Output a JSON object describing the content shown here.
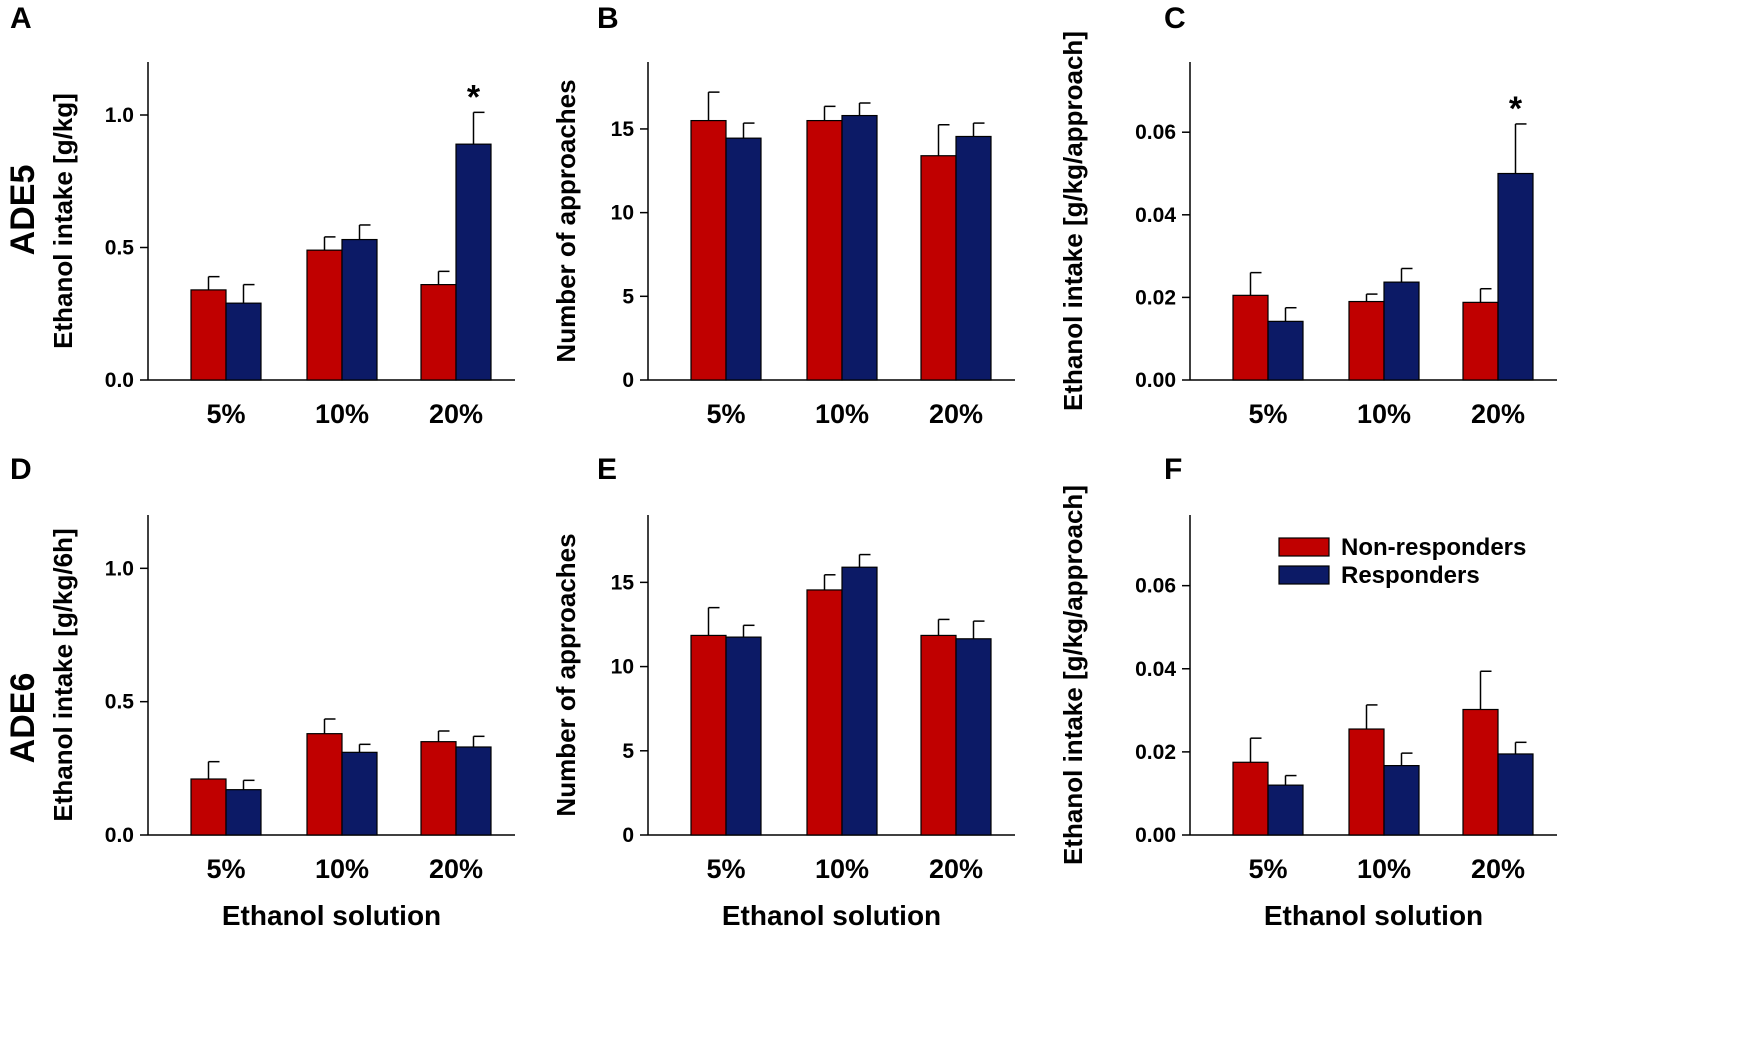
{
  "figure": {
    "series_names": [
      "Non-responders",
      "Responders"
    ],
    "colors": {
      "Non-responders": "#c00000",
      "Responders": "#0c1a66"
    },
    "row_labels": [
      "ADE5",
      "ADE6"
    ],
    "xlabel": "Ethanol solution"
  },
  "chart_data": [
    {
      "panel": "A",
      "type": "bar",
      "row": "ADE5",
      "ylabel": "Ethanol intake [g/kg]",
      "xlabel": "",
      "categories": [
        "5%",
        "10%",
        "20%"
      ],
      "ylim": [
        0,
        1.2
      ],
      "yticks": [
        0.0,
        0.5,
        1.0
      ],
      "ytick_labels": [
        "0.0",
        "0.5",
        "1.0"
      ],
      "series": [
        {
          "name": "Non-responders",
          "values": [
            0.34,
            0.49,
            0.36
          ],
          "errors": [
            0.05,
            0.05,
            0.05
          ]
        },
        {
          "name": "Responders",
          "values": [
            0.29,
            0.53,
            0.89
          ],
          "errors": [
            0.07,
            0.055,
            0.12
          ]
        }
      ],
      "annotations": [
        {
          "text": "*",
          "category": "20%",
          "series": "Responders"
        }
      ]
    },
    {
      "panel": "B",
      "type": "bar",
      "row": "ADE5",
      "ylabel": "Number of approaches",
      "xlabel": "",
      "categories": [
        "5%",
        "10%",
        "20%"
      ],
      "ylim": [
        0,
        19
      ],
      "yticks": [
        0,
        5,
        10,
        15
      ],
      "ytick_labels": [
        "0",
        "5",
        "10",
        "15"
      ],
      "series": [
        {
          "name": "Non-responders",
          "values": [
            15.5,
            15.5,
            13.4
          ],
          "errors": [
            1.7,
            0.85,
            1.85
          ]
        },
        {
          "name": "Responders",
          "values": [
            14.45,
            15.8,
            14.55
          ],
          "errors": [
            0.9,
            0.75,
            0.8
          ]
        }
      ],
      "annotations": []
    },
    {
      "panel": "C",
      "type": "bar",
      "row": "ADE5",
      "ylabel": "Ethanol intake [g/kg/approach]",
      "xlabel": "",
      "categories": [
        "5%",
        "10%",
        "20%"
      ],
      "ylim": [
        0,
        0.077
      ],
      "yticks": [
        0.0,
        0.02,
        0.04,
        0.06
      ],
      "ytick_labels": [
        "0.00",
        "0.02",
        "0.04",
        "0.06"
      ],
      "series": [
        {
          "name": "Non-responders",
          "values": [
            0.0205,
            0.019,
            0.0188
          ],
          "errors": [
            0.0055,
            0.0018,
            0.0033
          ]
        },
        {
          "name": "Responders",
          "values": [
            0.0142,
            0.0237,
            0.05
          ],
          "errors": [
            0.0033,
            0.0033,
            0.012
          ]
        }
      ],
      "annotations": [
        {
          "text": "*",
          "category": "20%",
          "series": "Responders"
        }
      ]
    },
    {
      "panel": "D",
      "type": "bar",
      "row": "ADE6",
      "ylabel": "Ethanol intake [g/kg/6h]",
      "xlabel": "Ethanol solution",
      "categories": [
        "5%",
        "10%",
        "20%"
      ],
      "ylim": [
        0,
        1.2
      ],
      "yticks": [
        0.0,
        0.5,
        1.0
      ],
      "ytick_labels": [
        "0.0",
        "0.5",
        "1.0"
      ],
      "series": [
        {
          "name": "Non-responders",
          "values": [
            0.21,
            0.38,
            0.35
          ],
          "errors": [
            0.065,
            0.055,
            0.04
          ]
        },
        {
          "name": "Responders",
          "values": [
            0.17,
            0.31,
            0.33
          ],
          "errors": [
            0.035,
            0.03,
            0.04
          ]
        }
      ],
      "annotations": []
    },
    {
      "panel": "E",
      "type": "bar",
      "row": "ADE6",
      "ylabel": "Number of approaches",
      "xlabel": "Ethanol solution",
      "categories": [
        "5%",
        "10%",
        "20%"
      ],
      "ylim": [
        0,
        19
      ],
      "yticks": [
        0,
        5,
        10,
        15
      ],
      "ytick_labels": [
        "0",
        "5",
        "10",
        "15"
      ],
      "series": [
        {
          "name": "Non-responders",
          "values": [
            11.85,
            14.55,
            11.85
          ],
          "errors": [
            1.65,
            0.9,
            0.95
          ]
        },
        {
          "name": "Responders",
          "values": [
            11.75,
            15.9,
            11.65
          ],
          "errors": [
            0.7,
            0.75,
            1.05
          ]
        }
      ],
      "annotations": []
    },
    {
      "panel": "F",
      "type": "bar",
      "row": "ADE6",
      "ylabel": "Ethanol intake [g/kg/approach]",
      "xlabel": "Ethanol solution",
      "categories": [
        "5%",
        "10%",
        "20%"
      ],
      "ylim": [
        0,
        0.077
      ],
      "yticks": [
        0.0,
        0.02,
        0.04,
        0.06
      ],
      "ytick_labels": [
        "0.00",
        "0.02",
        "0.04",
        "0.06"
      ],
      "series": [
        {
          "name": "Non-responders",
          "values": [
            0.0175,
            0.0255,
            0.0302
          ],
          "errors": [
            0.0058,
            0.0058,
            0.0092
          ]
        },
        {
          "name": "Responders",
          "values": [
            0.012,
            0.0167,
            0.0195
          ],
          "errors": [
            0.0023,
            0.003,
            0.0028
          ]
        }
      ],
      "annotations": [],
      "legend": {
        "placement": "top-right",
        "entries": [
          "Non-responders",
          "Responders"
        ]
      }
    }
  ]
}
